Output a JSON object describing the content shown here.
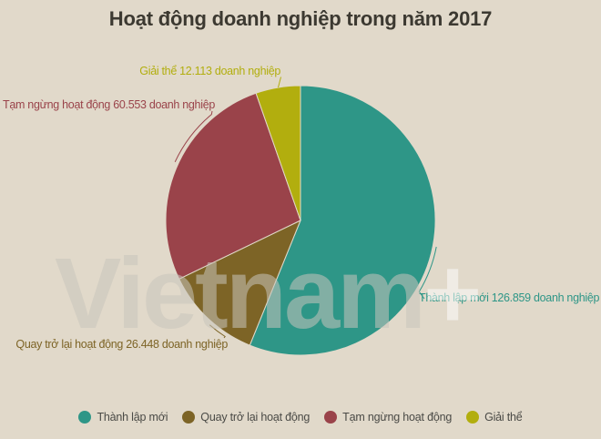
{
  "title": "Hoạt động doanh nghiệp trong năm 2017",
  "watermark": {
    "text": "Vietnam",
    "suffix": "+"
  },
  "colors": {
    "background": "#e1d9ca",
    "title_text": "#3c3931",
    "legend_text": "#4a4a46",
    "teal": "#2e9687",
    "olive": "#7d6426",
    "red": "#9a434a",
    "yellow_green": "#b2ae0e"
  },
  "chart_data": {
    "type": "pie",
    "title": "Hoạt động doanh nghiệp trong năm 2017",
    "unit": "doanh nghiệp",
    "direction": "clockwise",
    "start_angle_deg": 0,
    "legend_position": "bottom",
    "slices": [
      {
        "name": "Thành lập mới",
        "value": 126859,
        "color": "#2e9687",
        "callout": "Thành lập mới 126.859 doanh nghiệp"
      },
      {
        "name": "Quay trở lại hoạt động",
        "value": 26448,
        "color": "#7d6426",
        "callout": "Quay trở lại hoạt động 26.448 doanh nghiệp"
      },
      {
        "name": "Tạm ngừng hoạt động",
        "value": 60553,
        "color": "#9a434a",
        "callout": "Tạm ngừng hoạt động 60.553 doanh nghiệp"
      },
      {
        "name": "Giải thể",
        "value": 12113,
        "color": "#b2ae0e",
        "callout": "Giải thể 12.113 doanh nghiệp"
      }
    ]
  }
}
